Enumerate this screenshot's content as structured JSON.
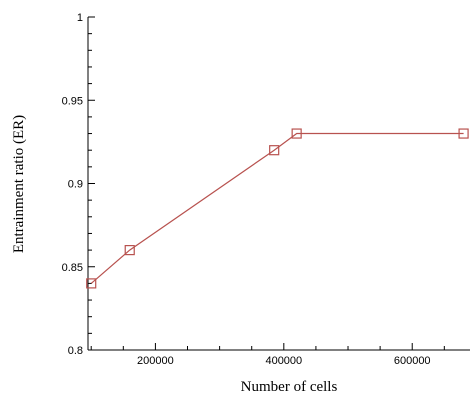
{
  "chart_data": {
    "type": "line",
    "xlabel": "Number of cells",
    "ylabel": "Entrainment ratio (ER)",
    "xlim": [
      95000,
      690000
    ],
    "ylim": [
      0.8,
      1.0
    ],
    "x_ticks": [
      200000,
      400000,
      600000
    ],
    "x_tick_labels": [
      "200000",
      "400000",
      "600000"
    ],
    "y_ticks": [
      0.8,
      0.85,
      0.9,
      0.95,
      1.0
    ],
    "y_tick_labels": [
      "0.8",
      "0.85",
      "0.9",
      "0.95",
      "1"
    ],
    "grid": false,
    "marker": "square",
    "series": [
      {
        "color": "#b8524f",
        "x": [
          100000,
          160000,
          385000,
          420000,
          680000
        ],
        "y": [
          0.84,
          0.86,
          0.92,
          0.93,
          0.93
        ]
      }
    ]
  }
}
